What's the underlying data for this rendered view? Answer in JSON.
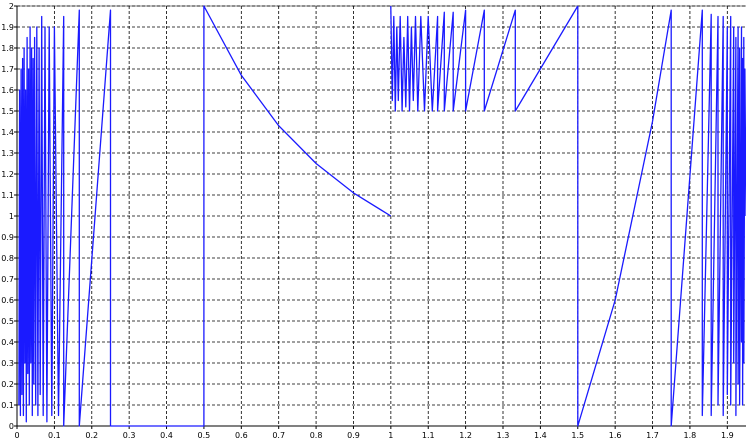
{
  "chart_data": {
    "type": "line",
    "title": "",
    "xlabel": "",
    "ylabel": "",
    "xlim": [
      0,
      1.95
    ],
    "ylim": [
      0,
      2
    ],
    "grid": true,
    "grid_style": "dashed",
    "colors": {
      "line": "#1a1aff",
      "grid": "#000000",
      "axis": "#000000"
    },
    "x_ticks": [
      "0",
      "0.1",
      "0.2",
      "0.3",
      "0.4",
      "0.5",
      "0.6",
      "0.7",
      "0.8",
      "0.9",
      "1",
      "1.1",
      "1.2",
      "1.3",
      "1.4",
      "1.5",
      "1.6",
      "1.7",
      "1.8",
      "1.9"
    ],
    "y_ticks": [
      "0",
      "0.1",
      "0.2",
      "0.3",
      "0.4",
      "0.5",
      "0.6",
      "0.7",
      "0.8",
      "0.9",
      "1",
      "1.1",
      "1.2",
      "1.3",
      "1.4",
      "1.5",
      "1.6",
      "1.7",
      "1.8",
      "1.9",
      "2"
    ],
    "series": [
      {
        "x": [
          0.005,
          0.007,
          0.009,
          0.011,
          0.013,
          0.015,
          0.017,
          0.019,
          0.021,
          0.023,
          0.025,
          0.027,
          0.029,
          0.031,
          0.033,
          0.035,
          0.037,
          0.039,
          0.041,
          0.043,
          0.045,
          0.047,
          0.05,
          0.053,
          0.056,
          0.059,
          0.062,
          0.066,
          0.07,
          0.075,
          0.08,
          0.086,
          0.093,
          0.1,
          0.111,
          0.125,
          0.125,
          0.1667,
          0.1667,
          0.25,
          0.25,
          0.5,
          0.5,
          0.6,
          0.7,
          0.8,
          0.9,
          1.0
        ],
        "y": [
          0.1,
          1.6,
          0.05,
          1.7,
          0.15,
          1.75,
          0.05,
          1.8,
          0.3,
          1.6,
          0.02,
          1.85,
          0.25,
          1.7,
          0.1,
          1.9,
          0.3,
          1.8,
          0.05,
          1.75,
          0.2,
          1.85,
          0.1,
          1.9,
          0.05,
          1.8,
          0.15,
          1.95,
          0.05,
          1.9,
          0.02,
          1.9,
          0.05,
          1.9,
          0.05,
          1.95,
          0.0,
          1.98,
          0.0,
          1.98,
          0.0,
          0.0,
          2.0,
          1.67,
          1.43,
          1.25,
          1.11,
          1.0
        ]
      },
      {
        "x": [
          1.0,
          1.004,
          1.008,
          1.012,
          1.016,
          1.02,
          1.025,
          1.03,
          1.035,
          1.04,
          1.045,
          1.05,
          1.055,
          1.06,
          1.066,
          1.072,
          1.08,
          1.09,
          1.1,
          1.111,
          1.125,
          1.125,
          1.143,
          1.143,
          1.1667,
          1.1667,
          1.2,
          1.2,
          1.25,
          1.25,
          1.333,
          1.333,
          1.5
        ],
        "y": [
          2.0,
          1.55,
          1.95,
          1.5,
          1.9,
          1.55,
          1.95,
          1.5,
          1.85,
          1.52,
          1.95,
          1.5,
          1.9,
          1.55,
          1.95,
          1.5,
          1.95,
          1.5,
          1.95,
          1.5,
          1.95,
          1.5,
          1.97,
          1.5,
          1.97,
          1.5,
          1.98,
          1.5,
          1.98,
          1.5,
          1.98,
          1.5,
          2.0
        ]
      },
      {
        "x": [
          1.5,
          1.5,
          1.6,
          1.7,
          1.75,
          1.75,
          1.833,
          1.833,
          1.857,
          1.857,
          1.875,
          1.875,
          1.889,
          1.889,
          1.9,
          1.9,
          1.909,
          1.909,
          1.917,
          1.917,
          1.923,
          1.923,
          1.929,
          1.929,
          1.933,
          1.933,
          1.938,
          1.938,
          1.941,
          1.941,
          1.944,
          1.944,
          1.947,
          1.95
        ],
        "y": [
          2.0,
          0.0,
          0.6,
          1.45,
          1.98,
          0.0,
          1.98,
          0.05,
          1.96,
          0.05,
          1.95,
          0.1,
          1.95,
          0.05,
          1.9,
          0.15,
          1.95,
          0.1,
          1.9,
          0.3,
          1.85,
          0.05,
          1.9,
          0.2,
          1.8,
          0.1,
          1.9,
          0.4,
          1.75,
          0.1,
          1.85,
          0.3,
          1.7,
          1.0
        ]
      }
    ]
  }
}
